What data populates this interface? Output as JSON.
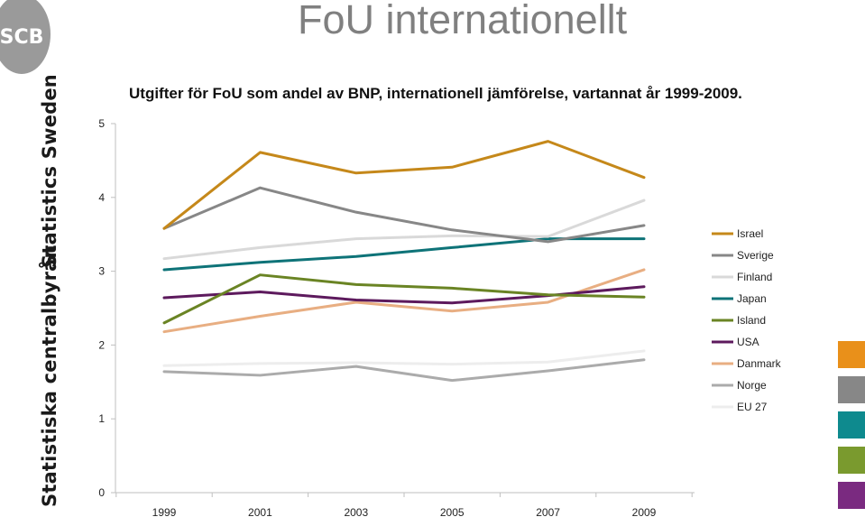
{
  "header": {
    "title": "FoU internationellt"
  },
  "branding": {
    "logo_text": "SCB",
    "side_text_upper": "Statistics Sweden",
    "side_text_lower": "Statistiska centralbyrån"
  },
  "chart_data": {
    "type": "line",
    "title": "Utgifter för FoU som andel av BNP, internationell jämförelse, vartannat år 1999-2009.",
    "xlabel": "",
    "ylabel": "",
    "categories": [
      "1999",
      "2001",
      "2003",
      "2005",
      "2007",
      "2009"
    ],
    "ylim": [
      0,
      5
    ],
    "yticks": [
      "0",
      "1",
      "2",
      "3",
      "4",
      "5"
    ],
    "grid": false,
    "legend_position": "right",
    "series": [
      {
        "name": "Israel",
        "color": "#C5881A",
        "values": [
          3.58,
          4.61,
          4.33,
          4.41,
          4.76,
          4.27
        ]
      },
      {
        "name": "Sverige",
        "color": "#878787",
        "values": [
          3.58,
          4.13,
          3.8,
          3.56,
          3.4,
          3.62
        ]
      },
      {
        "name": "Finland",
        "color": "#D9D9D9",
        "values": [
          3.17,
          3.32,
          3.44,
          3.48,
          3.47,
          3.96
        ]
      },
      {
        "name": "Japan",
        "color": "#0E7378",
        "values": [
          3.02,
          3.12,
          3.2,
          3.32,
          3.44,
          3.44
        ]
      },
      {
        "name": "Island",
        "color": "#6A8424",
        "values": [
          2.3,
          2.95,
          2.82,
          2.77,
          2.68,
          2.65
        ]
      },
      {
        "name": "USA",
        "color": "#5D1A5D",
        "values": [
          2.64,
          2.72,
          2.61,
          2.57,
          2.67,
          2.79
        ]
      },
      {
        "name": "Danmark",
        "color": "#E8AE82",
        "values": [
          2.18,
          2.39,
          2.58,
          2.46,
          2.58,
          3.02
        ]
      },
      {
        "name": "Norge",
        "color": "#ABABAB",
        "values": [
          1.64,
          1.59,
          1.71,
          1.52,
          1.65,
          1.8
        ]
      },
      {
        "name": "EU 27",
        "color": "#EDEDED",
        "values": [
          1.72,
          1.75,
          1.76,
          1.74,
          1.77,
          1.92
        ]
      }
    ]
  },
  "palette_swatches": [
    "#E9901A",
    "#878787",
    "#0E8A8E",
    "#7A9A2E",
    "#7A2A80"
  ]
}
